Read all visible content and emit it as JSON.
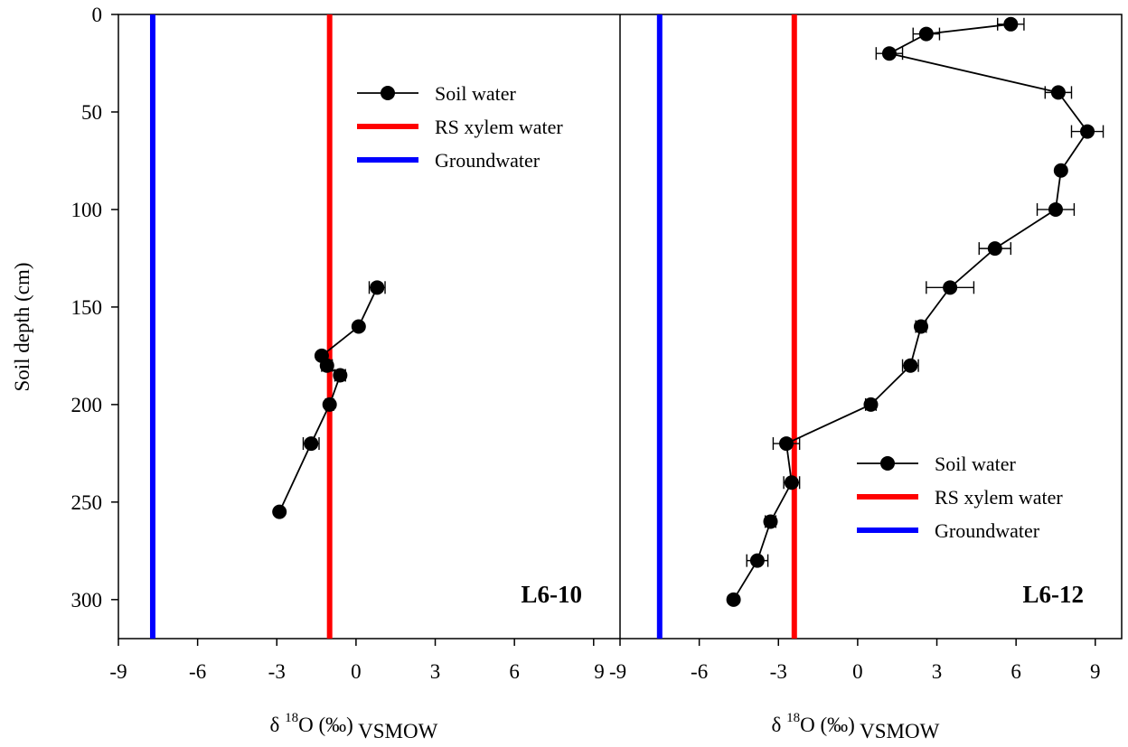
{
  "chart_data": {
    "type": "scatter",
    "y_axis": {
      "label": "Soil depth (cm)",
      "ylim": [
        320,
        0
      ],
      "ticks": [
        0,
        50,
        100,
        150,
        200,
        250,
        300
      ],
      "tick_labels": [
        "0",
        "50",
        "100",
        "150",
        "200",
        "250",
        "300"
      ]
    },
    "panels": [
      {
        "label": "L6-10",
        "xlim": [
          -9,
          10
        ],
        "x_ticks": [
          -9,
          -6,
          -3,
          0,
          3,
          6,
          9
        ],
        "x_tick_labels": [
          "-9",
          "-6",
          "-3",
          "0",
          "3",
          "6",
          "9"
        ],
        "x_label_main": "δ ",
        "x_label_sup": "18",
        "x_label_rest": "O (‰)",
        "x_label_sub": " VSMOW",
        "legend": {
          "position": "top-center",
          "entries": [
            "Soil water",
            "RS xylem water",
            "Groundwater"
          ]
        },
        "series": [
          {
            "name": "Soil water",
            "color": "#000000",
            "points": [
              {
                "x": 0.8,
                "y": 140,
                "err": 0.3
              },
              {
                "x": 0.1,
                "y": 160,
                "err": 0
              },
              {
                "x": -1.3,
                "y": 175,
                "err": 0
              },
              {
                "x": -1.1,
                "y": 180,
                "err": 0.2
              },
              {
                "x": -0.6,
                "y": 185,
                "err": 0.2
              },
              {
                "x": -1.0,
                "y": 200,
                "err": 0.15
              },
              {
                "x": -1.7,
                "y": 220,
                "err": 0.3
              },
              {
                "x": -2.9,
                "y": 255,
                "err": 0
              }
            ]
          },
          {
            "name": "RS xylem water",
            "color": "#ff0000",
            "x": -1.0
          },
          {
            "name": "Groundwater",
            "color": "#0000ff",
            "x": -7.7
          }
        ]
      },
      {
        "label": "L6-12",
        "xlim": [
          -9,
          10
        ],
        "x_ticks": [
          -9,
          -6,
          -3,
          0,
          3,
          6,
          9
        ],
        "x_tick_labels": [
          "-9",
          "-6",
          "-3",
          "0",
          "3",
          "6",
          "9"
        ],
        "x_label_main": "δ ",
        "x_label_sup": "18",
        "x_label_rest": "O (‰)",
        "x_label_sub": " VSMOW",
        "legend": {
          "position": "bottom-right",
          "entries": [
            "Soil water",
            "RS xylem water",
            "Groundwater"
          ]
        },
        "series": [
          {
            "name": "Soil water",
            "color": "#000000",
            "points": [
              {
                "x": 5.8,
                "y": 5,
                "err": 0.5
              },
              {
                "x": 2.6,
                "y": 10,
                "err": 0.5
              },
              {
                "x": 1.2,
                "y": 20,
                "err": 0.5
              },
              {
                "x": 7.6,
                "y": 40,
                "err": 0.5
              },
              {
                "x": 8.7,
                "y": 60,
                "err": 0.6
              },
              {
                "x": 7.7,
                "y": 80,
                "err": 0
              },
              {
                "x": 7.5,
                "y": 100,
                "err": 0.7
              },
              {
                "x": 5.2,
                "y": 120,
                "err": 0.6
              },
              {
                "x": 3.5,
                "y": 140,
                "err": 0.9
              },
              {
                "x": 2.4,
                "y": 160,
                "err": 0.2
              },
              {
                "x": 2.0,
                "y": 180,
                "err": 0.3
              },
              {
                "x": 0.5,
                "y": 200,
                "err": 0.2
              },
              {
                "x": -2.7,
                "y": 220,
                "err": 0.5
              },
              {
                "x": -2.5,
                "y": 240,
                "err": 0.3
              },
              {
                "x": -3.3,
                "y": 260,
                "err": 0.2
              },
              {
                "x": -3.8,
                "y": 280,
                "err": 0.4
              },
              {
                "x": -4.7,
                "y": 300,
                "err": 0.1
              }
            ]
          },
          {
            "name": "RS xylem water",
            "color": "#ff0000",
            "x": -2.4
          },
          {
            "name": "Groundwater",
            "color": "#0000ff",
            "x": -7.5
          }
        ]
      }
    ]
  }
}
